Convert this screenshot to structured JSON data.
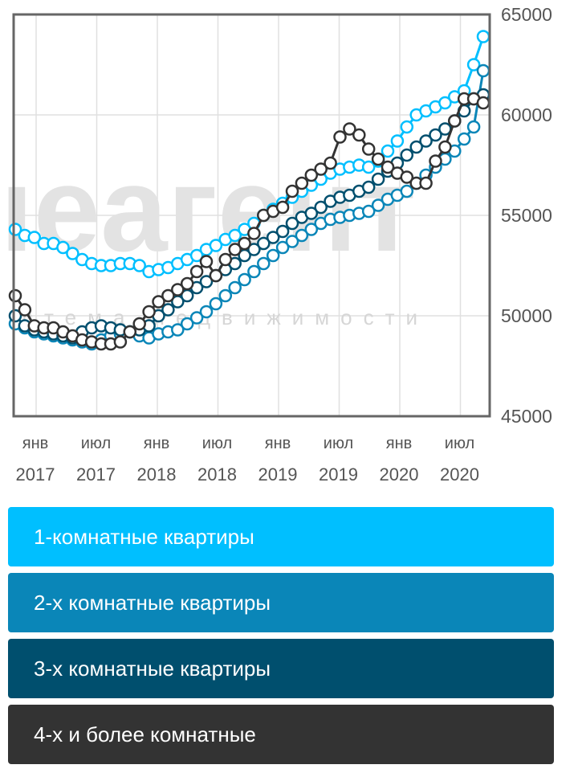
{
  "colors": {
    "s1": "#00bfff",
    "s2": "#0a86b8",
    "s3": "#004f6e",
    "s4": "#333333",
    "grid": "#e0e0e0",
    "frame": "#666666",
    "watermark_blue": "#cfe9f6",
    "watermark_gray": "#e3e3e3"
  },
  "watermark": {
    "big": "ıeагент",
    "small": "стема недвижимости"
  },
  "legend": [
    {
      "label": "1-комнатные квартиры"
    },
    {
      "label": "2-х комнатные квартиры"
    },
    {
      "label": "3-х комнатные квартиры"
    },
    {
      "label": "4-х и более комнатные"
    }
  ],
  "chart_data": {
    "type": "line",
    "xlabel": "",
    "ylabel": "",
    "ylim": [
      45000,
      65000
    ],
    "y_ticks": [
      "65000",
      "60000",
      "55000",
      "50000",
      "45000"
    ],
    "x_ticks": [
      {
        "month": "янв",
        "year": "2017"
      },
      {
        "month": "июл",
        "year": "2017"
      },
      {
        "month": "янв",
        "year": "2018"
      },
      {
        "month": "июл",
        "year": "2018"
      },
      {
        "month": "янв",
        "year": "2019"
      },
      {
        "month": "июл",
        "year": "2019"
      },
      {
        "month": "янв",
        "year": "2020"
      },
      {
        "month": "июл",
        "year": "2020"
      }
    ],
    "x_start": "2016-12",
    "y_axis_side": "right",
    "grid": true,
    "series": [
      {
        "name": "1-комнатные квартиры",
        "values": [
          54300,
          54000,
          53900,
          53600,
          53600,
          53400,
          53100,
          52800,
          52600,
          52500,
          52500,
          52600,
          52600,
          52500,
          52200,
          52300,
          52400,
          52600,
          52800,
          53000,
          53300,
          53500,
          53800,
          54000,
          54300,
          54600,
          55000,
          55300,
          55600,
          55900,
          56200,
          56500,
          56800,
          57100,
          57300,
          57400,
          57500,
          57400,
          57700,
          58200,
          58700,
          59400,
          60000,
          60200,
          60400,
          60600,
          60900,
          61200,
          62500,
          63900
        ]
      },
      {
        "name": "2-х комнатные квартиры",
        "values": [
          49600,
          49400,
          49200,
          49100,
          49000,
          48900,
          48800,
          48700,
          48600,
          48800,
          49000,
          49100,
          49200,
          49000,
          48900,
          49100,
          49200,
          49300,
          49600,
          49900,
          50200,
          50600,
          51000,
          51400,
          51800,
          52200,
          52600,
          53000,
          53400,
          53700,
          54000,
          54300,
          54600,
          54800,
          54900,
          55000,
          55100,
          55200,
          55500,
          55800,
          56000,
          56200,
          56600,
          57000,
          57400,
          57800,
          58200,
          58800,
          59400,
          62200
        ]
      },
      {
        "name": "3-х комнатные квартиры",
        "values": [
          50000,
          49500,
          49300,
          49200,
          49100,
          49000,
          48900,
          49200,
          49400,
          49500,
          49400,
          49300,
          49200,
          49300,
          49500,
          50000,
          50300,
          50700,
          51000,
          51400,
          51700,
          52000,
          52300,
          52600,
          53000,
          53300,
          53600,
          53900,
          54200,
          54600,
          54900,
          55100,
          55400,
          55700,
          55900,
          56000,
          56200,
          56400,
          56800,
          57200,
          57600,
          58000,
          58400,
          58700,
          59000,
          59300,
          59700,
          60200,
          60800,
          61000
        ]
      },
      {
        "name": "4-х и более комнатные",
        "values": [
          51000,
          50300,
          49500,
          49400,
          49400,
          49200,
          49000,
          48800,
          48700,
          48600,
          48600,
          48700,
          49200,
          49600,
          50200,
          50700,
          51000,
          51300,
          51600,
          52200,
          52700,
          52000,
          52800,
          53300,
          53600,
          54100,
          55000,
          55200,
          55400,
          56200,
          56600,
          57000,
          57300,
          57600,
          58900,
          59300,
          59000,
          58300,
          57800,
          57400,
          57100,
          56900,
          56600,
          56600,
          57700,
          58400,
          59700,
          60800,
          60800,
          60600
        ]
      }
    ]
  }
}
